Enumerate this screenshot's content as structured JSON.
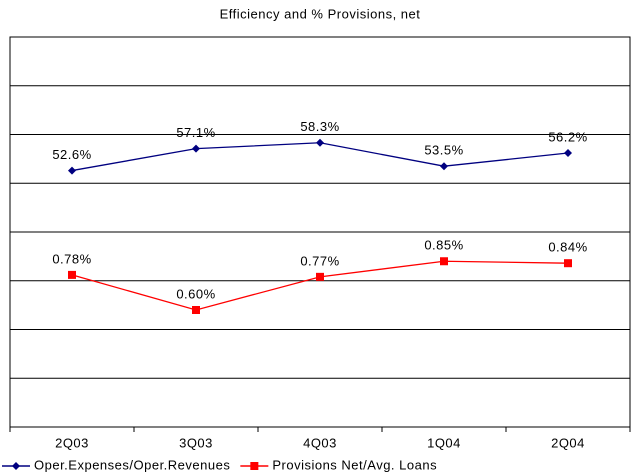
{
  "chart_data": {
    "type": "line",
    "title": "Efficiency and % Provisions, net",
    "categories": [
      "2Q03",
      "3Q03",
      "4Q03",
      "1Q04",
      "2Q04"
    ],
    "series": [
      {
        "name": "Oper.Expenses/Oper.Revenues",
        "color": "#000080",
        "marker": "diamond",
        "values": [
          52.6,
          57.1,
          58.3,
          53.5,
          56.2
        ],
        "value_labels": [
          "52.6%",
          "57.1%",
          "58.3%",
          "53.5%",
          "56.2%"
        ]
      },
      {
        "name": "Provisions Net/Avg. Loans",
        "color": "#ff0000",
        "marker": "square",
        "axis": "y2",
        "values": [
          0.78,
          0.6,
          0.77,
          0.85,
          0.84
        ],
        "value_labels": [
          "0.78%",
          "0.60%",
          "0.77%",
          "0.85%",
          "0.84%"
        ]
      }
    ],
    "ylim": [
      0,
      80
    ],
    "yticks": [
      0,
      10,
      20,
      30,
      40,
      50,
      60,
      70,
      80
    ],
    "y2lim": [
      0,
      2
    ],
    "grid": true,
    "legend": "bottom"
  }
}
